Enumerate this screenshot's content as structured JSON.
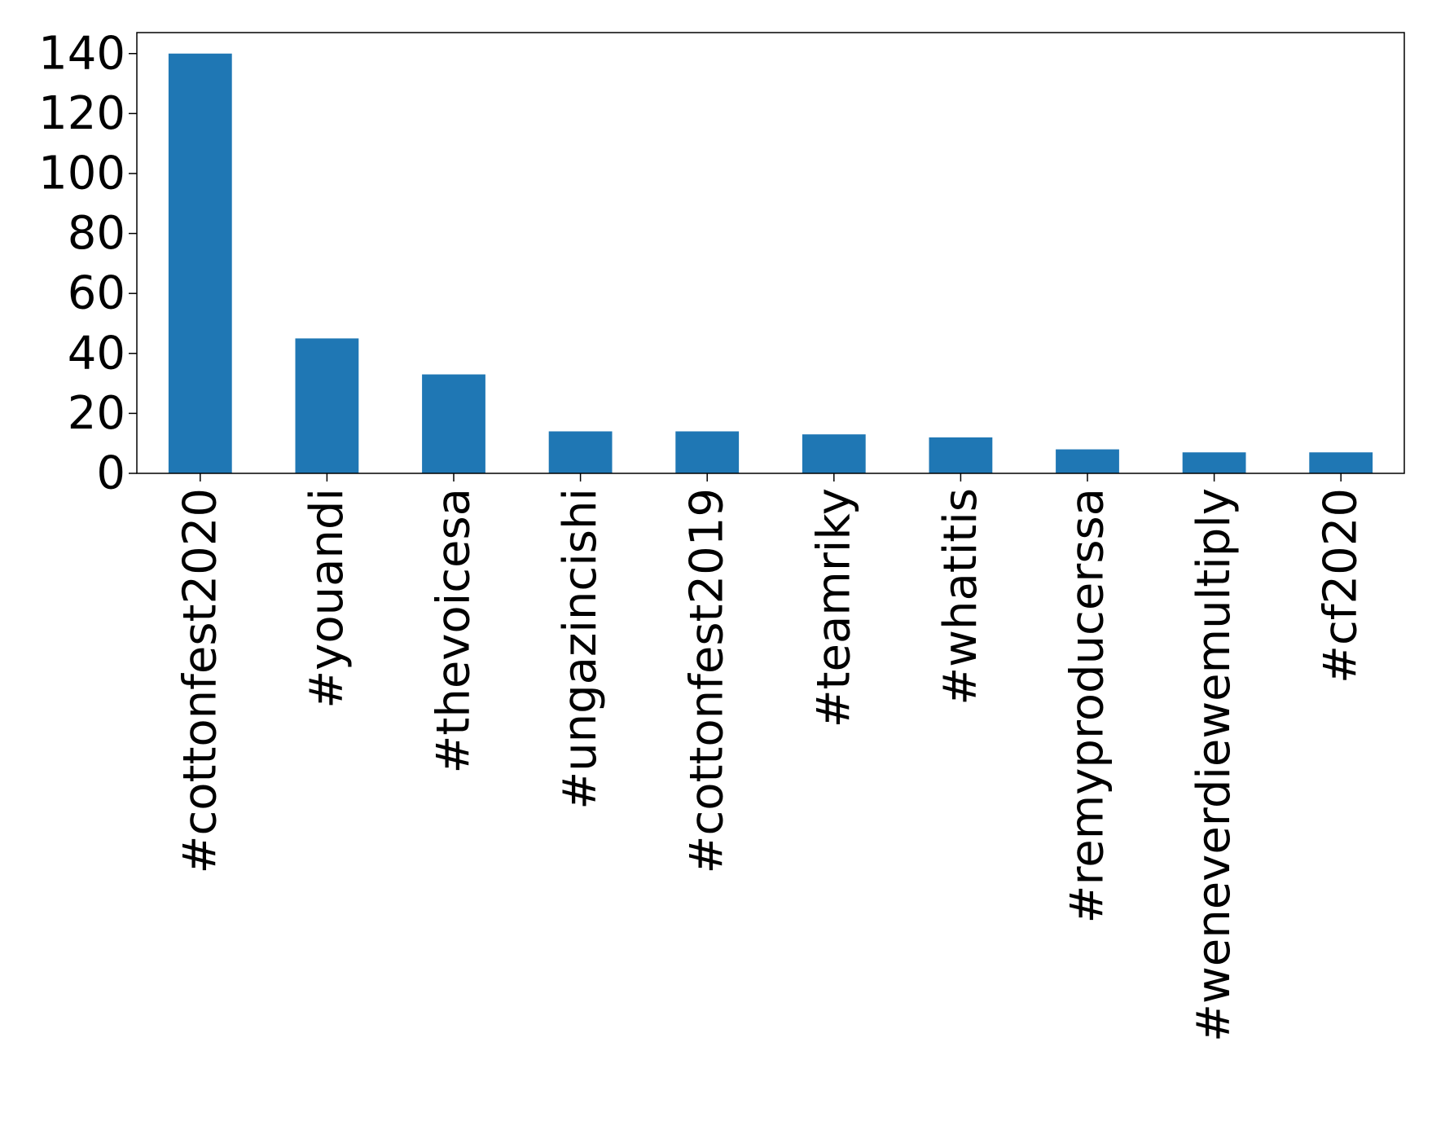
{
  "chart_data": {
    "type": "bar",
    "title": "",
    "xlabel": "",
    "ylabel": "",
    "categories": [
      "#cottonfest2020",
      "#youandi",
      "#thevoicesa",
      "#ungazincishi",
      "#cottonfest2019",
      "#teamriky",
      "#whatitis",
      "#remyproducerssa",
      "#weneverdiewemultiply",
      "#cf2020"
    ],
    "values": [
      140,
      45,
      33,
      14,
      14,
      13,
      12,
      8,
      7,
      7
    ],
    "ylim": [
      0,
      147
    ],
    "yticks": [
      0,
      20,
      40,
      60,
      80,
      100,
      120,
      140
    ],
    "yticks_labels": [
      "0",
      "20",
      "40",
      "60",
      "80",
      "100",
      "120",
      "140"
    ],
    "bar_color": "#1f77b4",
    "grid": false,
    "legend": "none"
  }
}
